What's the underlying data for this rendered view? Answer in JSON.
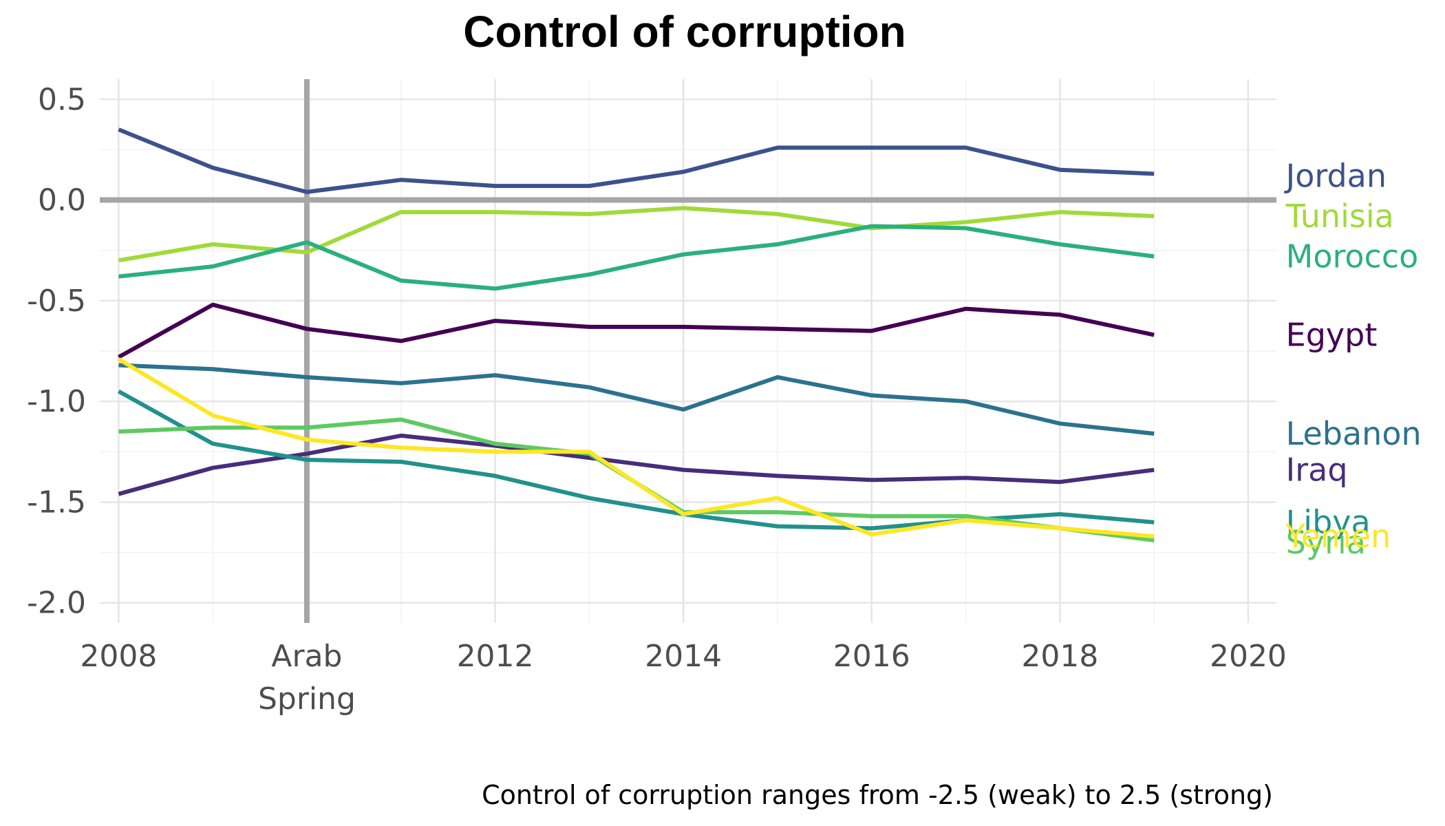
{
  "chart_data": {
    "type": "line",
    "title": "Control of corruption",
    "caption": "Control of corruption ranges from -2.5 (weak) to 2.5 (strong)",
    "xlabel": "",
    "ylabel": "",
    "xlim": [
      2007.8,
      2020.3
    ],
    "ylim": [
      -2.1,
      0.6
    ],
    "grid": true,
    "legend": "direct labels at right end of lines",
    "x_ticks": [
      {
        "value": 2008,
        "label": "2008"
      },
      {
        "value": 2010,
        "label": "Arab\nSpring"
      },
      {
        "value": 2012,
        "label": "2012"
      },
      {
        "value": 2014,
        "label": "2014"
      },
      {
        "value": 2016,
        "label": "2016"
      },
      {
        "value": 2018,
        "label": "2018"
      },
      {
        "value": 2020,
        "label": "2020"
      }
    ],
    "y_ticks": [
      {
        "value": 0.5,
        "label": "0.5"
      },
      {
        "value": 0.0,
        "label": "0.0"
      },
      {
        "value": -0.5,
        "label": "-0.5"
      },
      {
        "value": -1.0,
        "label": "-1.0"
      },
      {
        "value": -1.5,
        "label": "-1.5"
      },
      {
        "value": -2.0,
        "label": "-2.0"
      }
    ],
    "reference_lines": {
      "x": 2010,
      "y": 0.0,
      "color": "#a6a6a6"
    },
    "x": [
      2008,
      2009,
      2010,
      2011,
      2012,
      2013,
      2014,
      2015,
      2016,
      2017,
      2018,
      2019
    ],
    "series": [
      {
        "name": "Jordan",
        "color": "#3b528b",
        "label_y": 0.12,
        "values": [
          0.35,
          0.16,
          0.04,
          0.1,
          0.07,
          0.07,
          0.14,
          0.26,
          0.26,
          0.26,
          0.15,
          0.13
        ]
      },
      {
        "name": "Tunisia",
        "color": "#a0da39",
        "label_y": -0.08,
        "values": [
          -0.3,
          -0.22,
          -0.26,
          -0.06,
          -0.06,
          -0.07,
          -0.04,
          -0.07,
          -0.14,
          -0.11,
          -0.06,
          -0.08
        ]
      },
      {
        "name": "Morocco",
        "color": "#2ab07f",
        "label_y": -0.28,
        "values": [
          -0.38,
          -0.33,
          -0.21,
          -0.4,
          -0.44,
          -0.37,
          -0.27,
          -0.22,
          -0.13,
          -0.14,
          -0.22,
          -0.28
        ]
      },
      {
        "name": "Egypt",
        "color": "#440154",
        "label_y": -0.67,
        "values": [
          -0.78,
          -0.52,
          -0.64,
          -0.7,
          -0.6,
          -0.63,
          -0.63,
          -0.64,
          -0.65,
          -0.54,
          -0.57,
          -0.67
        ]
      },
      {
        "name": "Lebanon",
        "color": "#2c728e",
        "label_y": -1.16,
        "values": [
          -0.82,
          -0.84,
          -0.88,
          -0.91,
          -0.87,
          -0.93,
          -1.04,
          -0.88,
          -0.97,
          -1.0,
          -1.11,
          -1.16
        ]
      },
      {
        "name": "Iraq",
        "color": "#472d7b",
        "label_y": -1.34,
        "values": [
          -1.46,
          -1.33,
          -1.26,
          -1.17,
          -1.22,
          -1.28,
          -1.34,
          -1.37,
          -1.39,
          -1.38,
          -1.4,
          -1.34
        ]
      },
      {
        "name": "Libya",
        "color": "#21918c",
        "label_y": -1.6,
        "values": [
          -0.95,
          -1.21,
          -1.29,
          -1.3,
          -1.37,
          -1.48,
          -1.56,
          -1.62,
          -1.63,
          -1.59,
          -1.56,
          -1.6
        ]
      },
      {
        "name": "Syria",
        "color": "#5ec962",
        "label_y": -1.7,
        "values": [
          -1.15,
          -1.13,
          -1.13,
          -1.09,
          -1.21,
          -1.26,
          -1.55,
          -1.55,
          -1.57,
          -1.57,
          -1.63,
          -1.69
        ]
      },
      {
        "name": "Yemen",
        "color": "#fde725",
        "label_y": -1.67,
        "values": [
          -0.79,
          -1.07,
          -1.19,
          -1.23,
          -1.25,
          -1.25,
          -1.56,
          -1.48,
          -1.66,
          -1.59,
          -1.63,
          -1.67
        ]
      }
    ]
  }
}
